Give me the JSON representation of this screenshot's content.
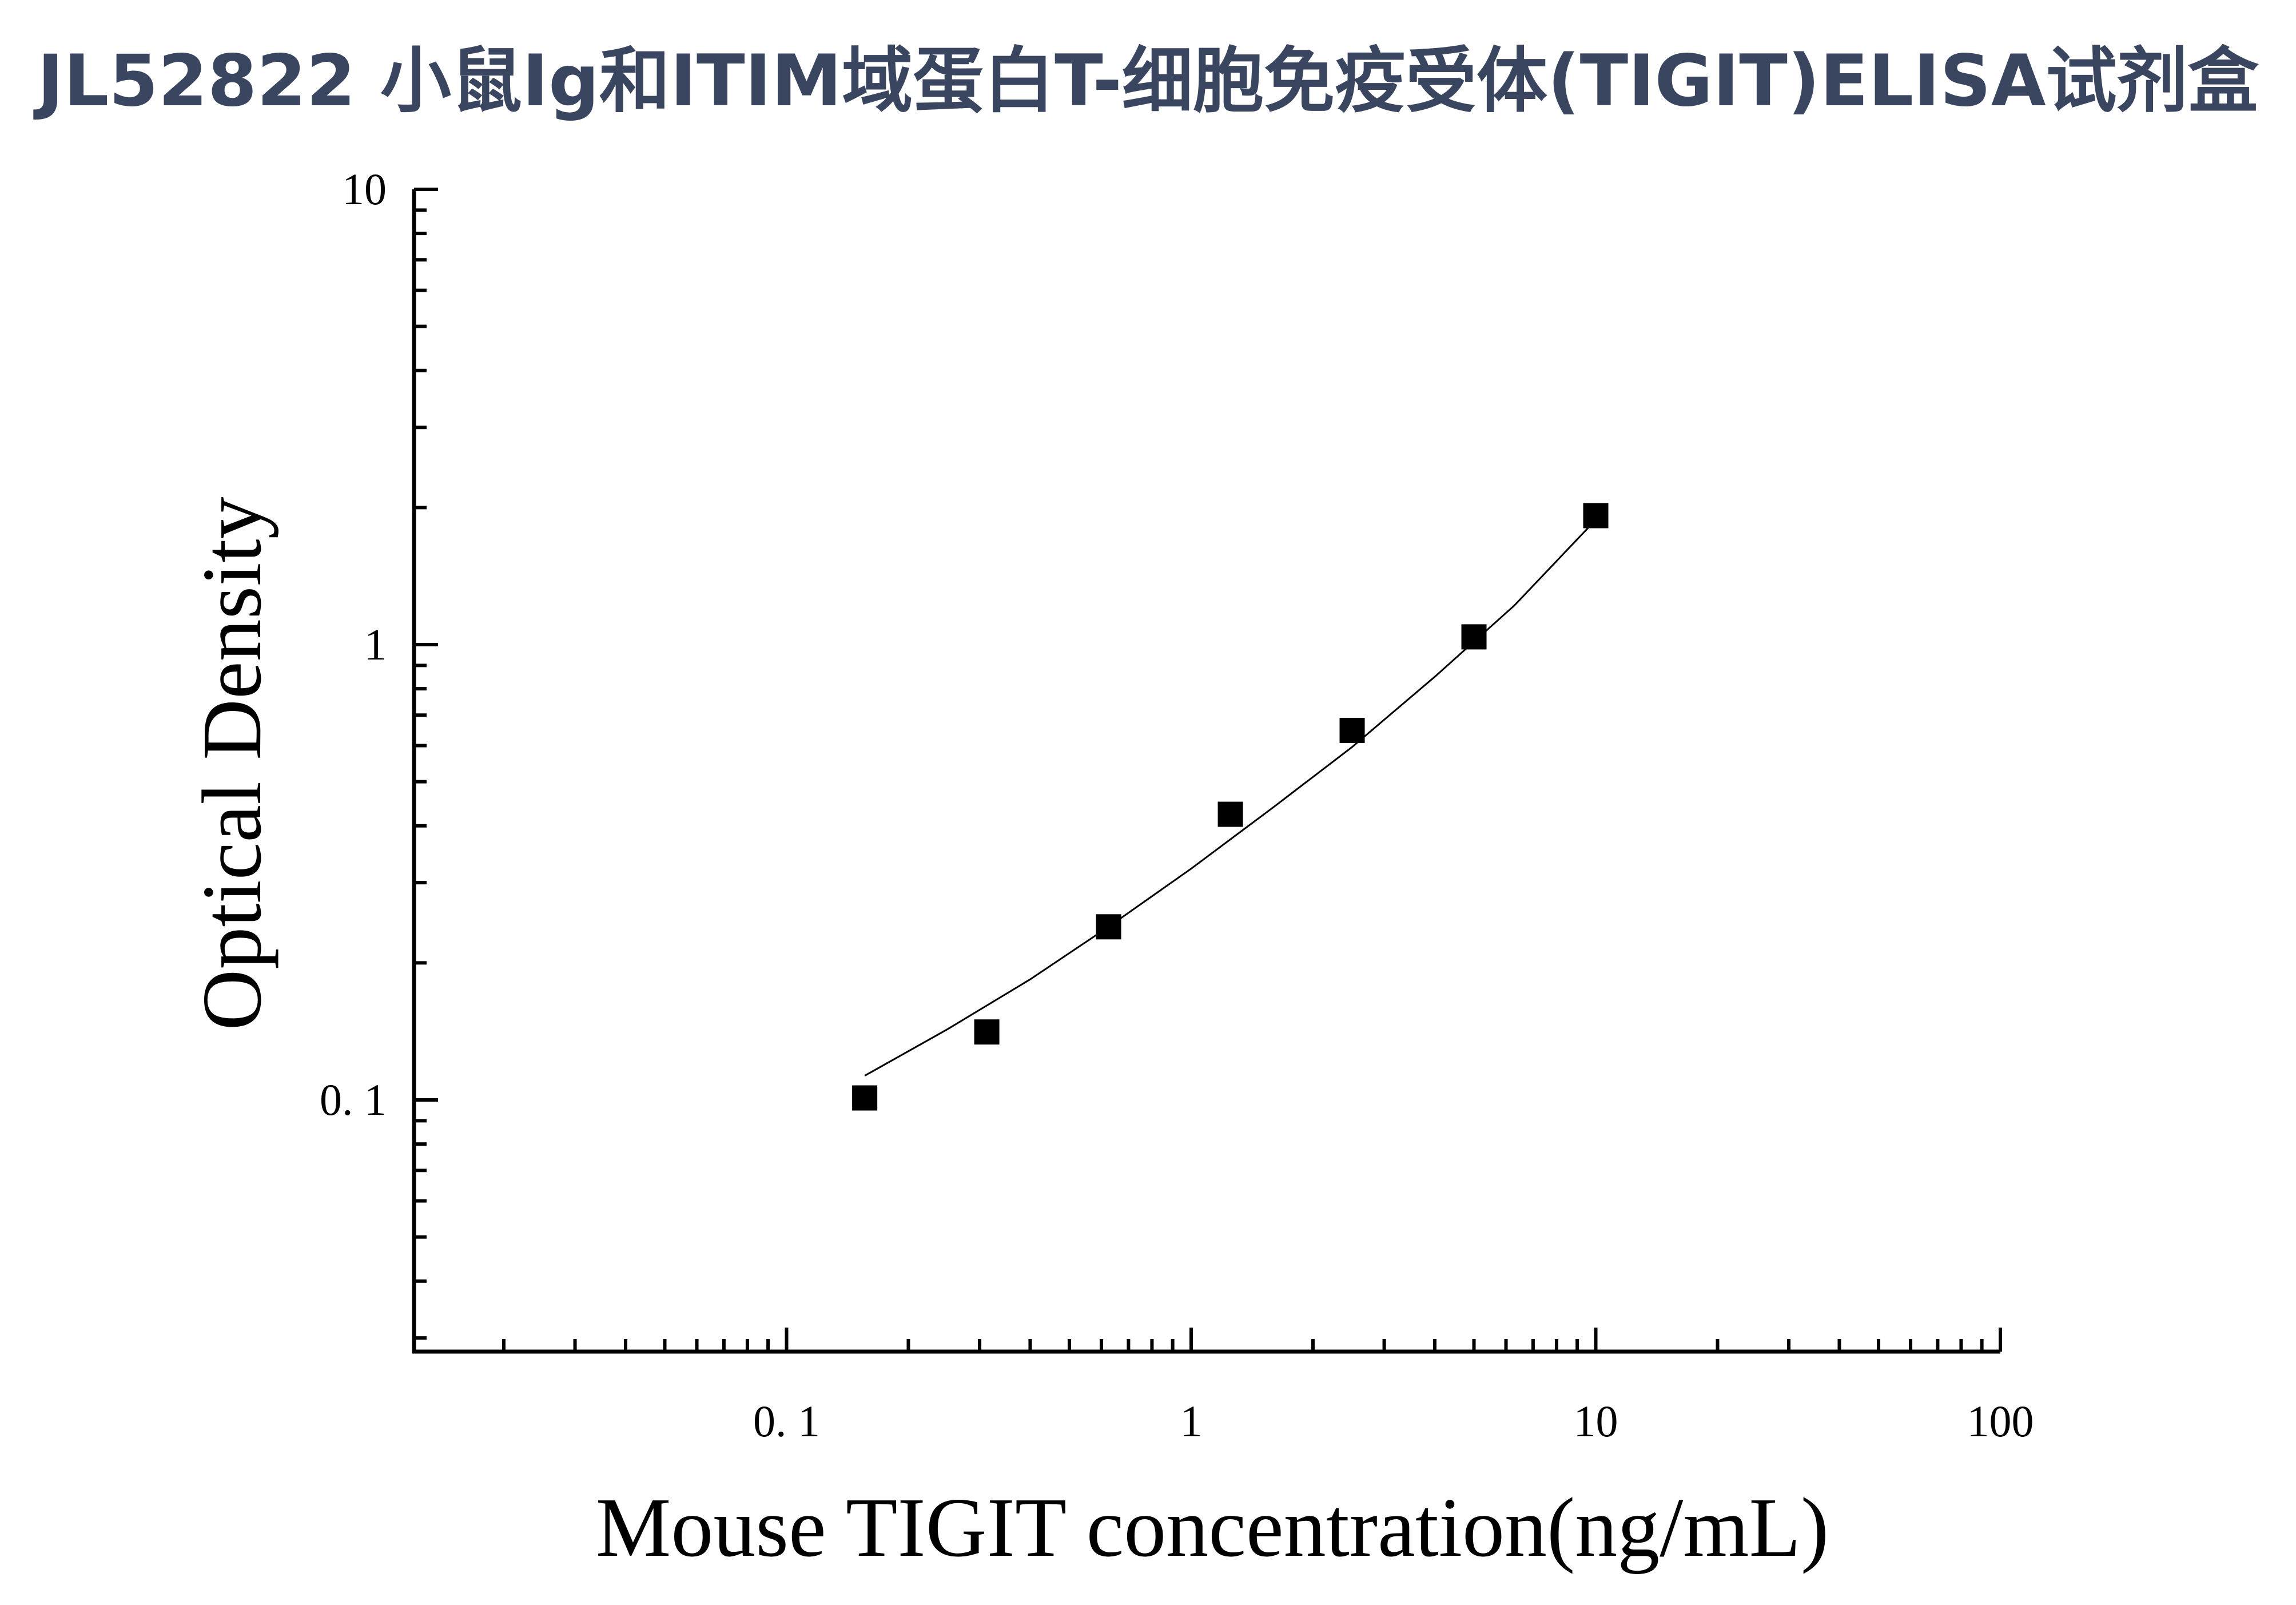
{
  "title": "JL52822 小鼠Ig和ITIM域蛋白T-细胞免疫受体(TIGIT)ELISA试剂盒",
  "chart_data": {
    "type": "scatter",
    "title": "JL52822 小鼠Ig和ITIM域蛋白T-细胞免疫受体(TIGIT)ELISA试剂盒",
    "xlabel": "Mouse TIGIT concentration(ng/mL)",
    "ylabel": "Optical Density",
    "x_scale": "log",
    "y_scale": "log",
    "xlim": [
      0.012,
      100
    ],
    "ylim": [
      0.028,
      10
    ],
    "x_ticks": [
      {
        "value": 0.1,
        "label": "0. 1"
      },
      {
        "value": 1,
        "label": "1"
      },
      {
        "value": 10,
        "label": "10"
      },
      {
        "value": 100,
        "label": "100"
      }
    ],
    "y_ticks": [
      {
        "value": 0.1,
        "label": "0. 1"
      },
      {
        "value": 1,
        "label": "1"
      },
      {
        "value": 10,
        "label": "10"
      }
    ],
    "grid": false,
    "marker": "square",
    "marker_color": "#000000",
    "series": [
      {
        "x": [
          0.156,
          0.3125,
          0.625,
          1.25,
          2.5,
          5,
          10
        ],
        "y": [
          0.101,
          0.141,
          0.24,
          0.424,
          0.648,
          1.04,
          1.92
        ]
      }
    ],
    "fit_curve": {
      "x": [
        0.156,
        0.25,
        0.4,
        0.625,
        1.0,
        1.6,
        2.5,
        4.0,
        6.3,
        10
      ],
      "y": [
        0.113,
        0.143,
        0.184,
        0.24,
        0.322,
        0.44,
        0.596,
        0.85,
        1.22,
        1.88
      ]
    }
  }
}
